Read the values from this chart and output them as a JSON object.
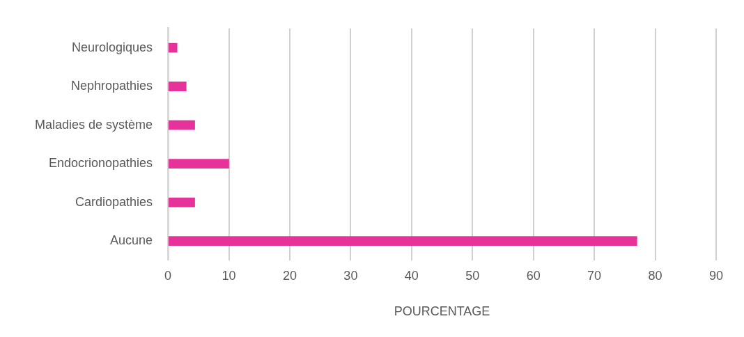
{
  "chart_data": {
    "type": "bar",
    "orientation": "horizontal",
    "xlabel": "POURCENTAGE",
    "categories": [
      "Neurologiques",
      "Nephropathies",
      "Maladies de système",
      "Endocrionopathies",
      "Cardiopathies",
      "Aucune"
    ],
    "values": [
      1.5,
      3,
      4.4,
      10,
      4.4,
      77
    ],
    "color": "#e5339a",
    "xlim": [
      0,
      90
    ],
    "xticks": [
      0,
      10,
      20,
      30,
      40,
      50,
      60,
      70,
      80,
      90
    ],
    "grid": "x",
    "legend": false
  }
}
